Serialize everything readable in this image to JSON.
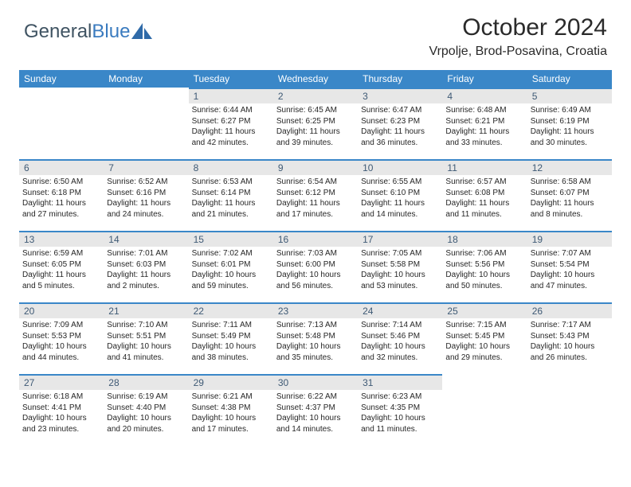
{
  "brand": {
    "part1": "General",
    "part2": "Blue"
  },
  "header": {
    "title": "October 2024",
    "location": "Vrpolje, Brod-Posavina, Croatia"
  },
  "weekdays": [
    "Sunday",
    "Monday",
    "Tuesday",
    "Wednesday",
    "Thursday",
    "Friday",
    "Saturday"
  ],
  "colors": {
    "header_bg": "#3a87c8",
    "daynum_bg": "#e7e7e7",
    "daynum_text": "#3f5a75",
    "row_border": "#3a87c8"
  },
  "weeks": [
    [
      null,
      null,
      {
        "n": "1",
        "sr": "Sunrise: 6:44 AM",
        "ss": "Sunset: 6:27 PM",
        "d1": "Daylight: 11 hours",
        "d2": "and 42 minutes."
      },
      {
        "n": "2",
        "sr": "Sunrise: 6:45 AM",
        "ss": "Sunset: 6:25 PM",
        "d1": "Daylight: 11 hours",
        "d2": "and 39 minutes."
      },
      {
        "n": "3",
        "sr": "Sunrise: 6:47 AM",
        "ss": "Sunset: 6:23 PM",
        "d1": "Daylight: 11 hours",
        "d2": "and 36 minutes."
      },
      {
        "n": "4",
        "sr": "Sunrise: 6:48 AM",
        "ss": "Sunset: 6:21 PM",
        "d1": "Daylight: 11 hours",
        "d2": "and 33 minutes."
      },
      {
        "n": "5",
        "sr": "Sunrise: 6:49 AM",
        "ss": "Sunset: 6:19 PM",
        "d1": "Daylight: 11 hours",
        "d2": "and 30 minutes."
      }
    ],
    [
      {
        "n": "6",
        "sr": "Sunrise: 6:50 AM",
        "ss": "Sunset: 6:18 PM",
        "d1": "Daylight: 11 hours",
        "d2": "and 27 minutes."
      },
      {
        "n": "7",
        "sr": "Sunrise: 6:52 AM",
        "ss": "Sunset: 6:16 PM",
        "d1": "Daylight: 11 hours",
        "d2": "and 24 minutes."
      },
      {
        "n": "8",
        "sr": "Sunrise: 6:53 AM",
        "ss": "Sunset: 6:14 PM",
        "d1": "Daylight: 11 hours",
        "d2": "and 21 minutes."
      },
      {
        "n": "9",
        "sr": "Sunrise: 6:54 AM",
        "ss": "Sunset: 6:12 PM",
        "d1": "Daylight: 11 hours",
        "d2": "and 17 minutes."
      },
      {
        "n": "10",
        "sr": "Sunrise: 6:55 AM",
        "ss": "Sunset: 6:10 PM",
        "d1": "Daylight: 11 hours",
        "d2": "and 14 minutes."
      },
      {
        "n": "11",
        "sr": "Sunrise: 6:57 AM",
        "ss": "Sunset: 6:08 PM",
        "d1": "Daylight: 11 hours",
        "d2": "and 11 minutes."
      },
      {
        "n": "12",
        "sr": "Sunrise: 6:58 AM",
        "ss": "Sunset: 6:07 PM",
        "d1": "Daylight: 11 hours",
        "d2": "and 8 minutes."
      }
    ],
    [
      {
        "n": "13",
        "sr": "Sunrise: 6:59 AM",
        "ss": "Sunset: 6:05 PM",
        "d1": "Daylight: 11 hours",
        "d2": "and 5 minutes."
      },
      {
        "n": "14",
        "sr": "Sunrise: 7:01 AM",
        "ss": "Sunset: 6:03 PM",
        "d1": "Daylight: 11 hours",
        "d2": "and 2 minutes."
      },
      {
        "n": "15",
        "sr": "Sunrise: 7:02 AM",
        "ss": "Sunset: 6:01 PM",
        "d1": "Daylight: 10 hours",
        "d2": "and 59 minutes."
      },
      {
        "n": "16",
        "sr": "Sunrise: 7:03 AM",
        "ss": "Sunset: 6:00 PM",
        "d1": "Daylight: 10 hours",
        "d2": "and 56 minutes."
      },
      {
        "n": "17",
        "sr": "Sunrise: 7:05 AM",
        "ss": "Sunset: 5:58 PM",
        "d1": "Daylight: 10 hours",
        "d2": "and 53 minutes."
      },
      {
        "n": "18",
        "sr": "Sunrise: 7:06 AM",
        "ss": "Sunset: 5:56 PM",
        "d1": "Daylight: 10 hours",
        "d2": "and 50 minutes."
      },
      {
        "n": "19",
        "sr": "Sunrise: 7:07 AM",
        "ss": "Sunset: 5:54 PM",
        "d1": "Daylight: 10 hours",
        "d2": "and 47 minutes."
      }
    ],
    [
      {
        "n": "20",
        "sr": "Sunrise: 7:09 AM",
        "ss": "Sunset: 5:53 PM",
        "d1": "Daylight: 10 hours",
        "d2": "and 44 minutes."
      },
      {
        "n": "21",
        "sr": "Sunrise: 7:10 AM",
        "ss": "Sunset: 5:51 PM",
        "d1": "Daylight: 10 hours",
        "d2": "and 41 minutes."
      },
      {
        "n": "22",
        "sr": "Sunrise: 7:11 AM",
        "ss": "Sunset: 5:49 PM",
        "d1": "Daylight: 10 hours",
        "d2": "and 38 minutes."
      },
      {
        "n": "23",
        "sr": "Sunrise: 7:13 AM",
        "ss": "Sunset: 5:48 PM",
        "d1": "Daylight: 10 hours",
        "d2": "and 35 minutes."
      },
      {
        "n": "24",
        "sr": "Sunrise: 7:14 AM",
        "ss": "Sunset: 5:46 PM",
        "d1": "Daylight: 10 hours",
        "d2": "and 32 minutes."
      },
      {
        "n": "25",
        "sr": "Sunrise: 7:15 AM",
        "ss": "Sunset: 5:45 PM",
        "d1": "Daylight: 10 hours",
        "d2": "and 29 minutes."
      },
      {
        "n": "26",
        "sr": "Sunrise: 7:17 AM",
        "ss": "Sunset: 5:43 PM",
        "d1": "Daylight: 10 hours",
        "d2": "and 26 minutes."
      }
    ],
    [
      {
        "n": "27",
        "sr": "Sunrise: 6:18 AM",
        "ss": "Sunset: 4:41 PM",
        "d1": "Daylight: 10 hours",
        "d2": "and 23 minutes."
      },
      {
        "n": "28",
        "sr": "Sunrise: 6:19 AM",
        "ss": "Sunset: 4:40 PM",
        "d1": "Daylight: 10 hours",
        "d2": "and 20 minutes."
      },
      {
        "n": "29",
        "sr": "Sunrise: 6:21 AM",
        "ss": "Sunset: 4:38 PM",
        "d1": "Daylight: 10 hours",
        "d2": "and 17 minutes."
      },
      {
        "n": "30",
        "sr": "Sunrise: 6:22 AM",
        "ss": "Sunset: 4:37 PM",
        "d1": "Daylight: 10 hours",
        "d2": "and 14 minutes."
      },
      {
        "n": "31",
        "sr": "Sunrise: 6:23 AM",
        "ss": "Sunset: 4:35 PM",
        "d1": "Daylight: 10 hours",
        "d2": "and 11 minutes."
      },
      null,
      null
    ]
  ]
}
